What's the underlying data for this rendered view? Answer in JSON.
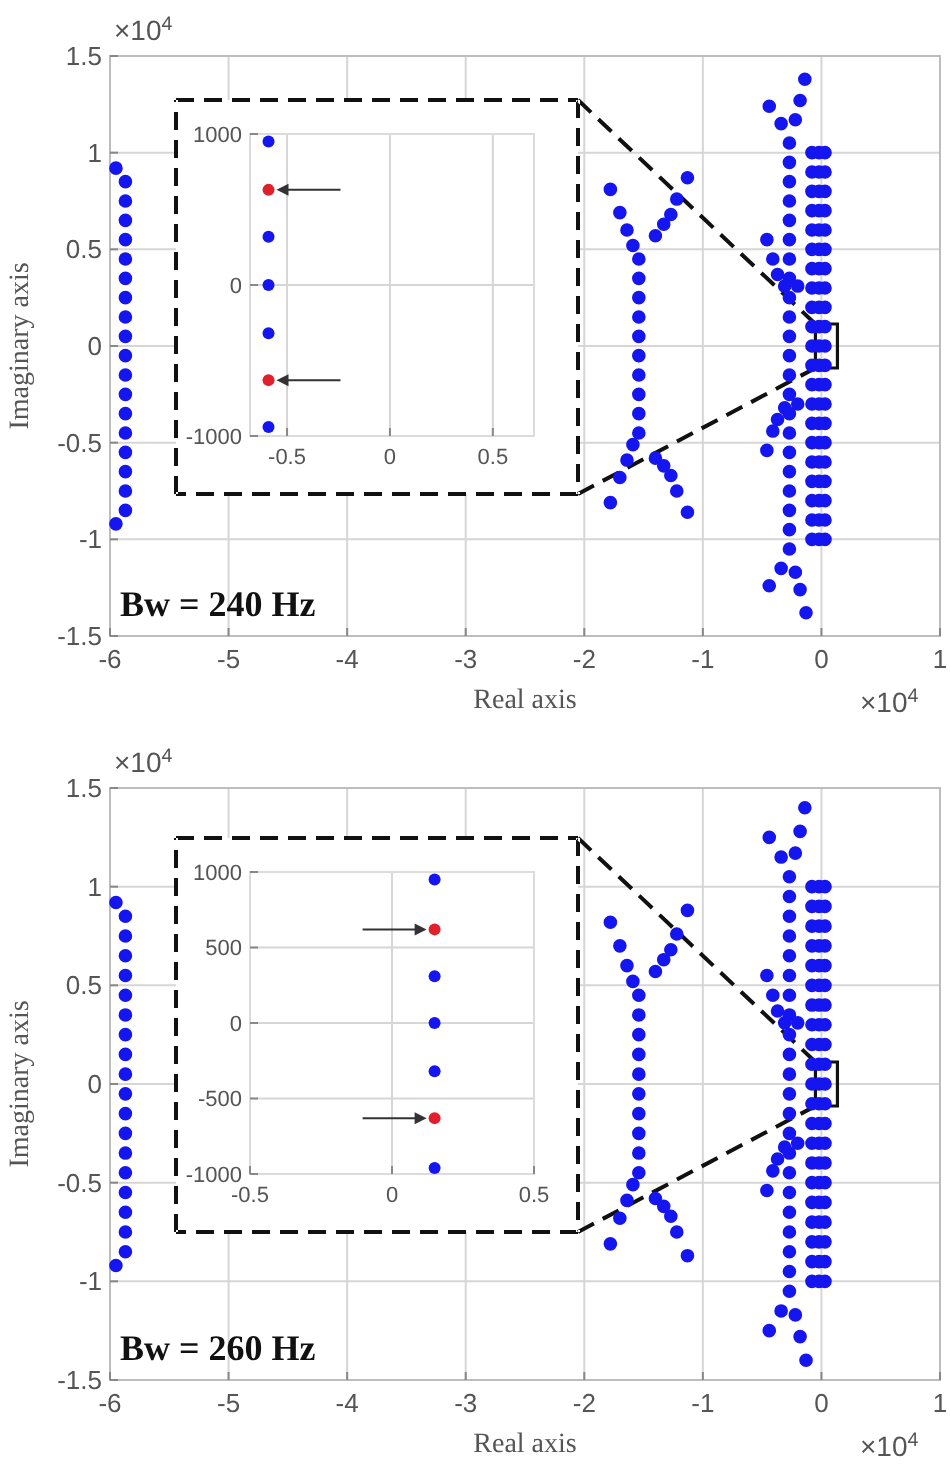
{
  "chart_data": [
    {
      "type": "scatter",
      "xlabel": "Real axis",
      "ylabel": "Imaginary axis",
      "annotations": [
        "×10$^{4}$",
        "×10$^{4}$",
        "Bw = 240 Hz"
      ],
      "xlim": [
        -6,
        1
      ],
      "ylim": [
        -1.5,
        1.5
      ],
      "xticks": [
        -6,
        -5,
        -4,
        -3,
        -2,
        -1,
        0,
        1
      ],
      "yticks": [
        -1.5,
        -1,
        -0.5,
        0,
        0.5,
        1,
        1.5
      ],
      "grid": true,
      "marker": "circle",
      "series": [
        {
          "color": "#1515f0",
          "x": [
            -5.95,
            -5.87,
            -5.87,
            -5.87,
            -5.87,
            -5.87,
            -5.87,
            -5.87,
            -5.87,
            -5.87,
            -5.87,
            -5.87,
            -5.87,
            -5.87,
            -5.87,
            -5.87,
            -5.87,
            -5.87,
            -5.87,
            -5.95
          ],
          "values": [
            -0.92,
            -0.85,
            -0.75,
            -0.65,
            -0.55,
            -0.45,
            -0.35,
            -0.25,
            -0.15,
            -0.05,
            0.05,
            0.15,
            0.25,
            0.35,
            0.45,
            0.55,
            0.65,
            0.75,
            0.85,
            0.92
          ]
        },
        {
          "color": "#1515f0",
          "x": [
            -1.54,
            -1.54,
            -1.54,
            -1.54,
            -1.54,
            -1.54,
            -1.54,
            -1.54,
            -1.54,
            -1.54,
            -1.78,
            -1.7,
            -1.64,
            -1.59,
            -1.4,
            -1.33,
            -1.27,
            -1.22,
            -1.13,
            -1.78,
            -1.7,
            -1.64,
            -1.59,
            -1.4,
            -1.33,
            -1.27,
            -1.22,
            -1.13
          ],
          "values": [
            -0.45,
            -0.35,
            -0.25,
            -0.15,
            -0.05,
            0.05,
            0.15,
            0.25,
            0.35,
            0.45,
            0.81,
            0.69,
            0.6,
            0.52,
            0.57,
            0.63,
            0.68,
            0.76,
            0.87,
            -0.81,
            -0.68,
            -0.59,
            -0.51,
            -0.58,
            -0.62,
            -0.67,
            -0.75,
            -0.86
          ]
        },
        {
          "color": "#1515f0",
          "x": [
            -0.27,
            -0.27,
            -0.27,
            -0.27,
            -0.27,
            -0.27,
            -0.27,
            -0.27,
            -0.27,
            -0.27,
            -0.27,
            -0.27,
            -0.27,
            -0.27,
            -0.27,
            -0.27,
            -0.27,
            -0.27,
            -0.27,
            -0.27,
            -0.27,
            -0.27,
            -0.44,
            -0.34,
            -0.22,
            -0.18,
            -0.14,
            -0.44,
            -0.34,
            -0.22,
            -0.18,
            -0.13,
            -0.46,
            -0.41,
            -0.37,
            -0.31,
            -0.2,
            -0.46,
            -0.41,
            -0.37,
            -0.31,
            -0.2
          ],
          "values": [
            -1.05,
            -0.95,
            -0.85,
            -0.75,
            -0.65,
            -0.55,
            -0.45,
            -0.35,
            -0.25,
            -0.15,
            -0.05,
            0.05,
            0.15,
            0.25,
            0.35,
            0.45,
            0.55,
            0.65,
            0.75,
            0.85,
            0.95,
            1.05,
            1.24,
            1.15,
            1.17,
            1.27,
            1.38,
            -1.24,
            -1.15,
            -1.17,
            -1.26,
            -1.38,
            0.55,
            0.45,
            0.37,
            0.31,
            0.31,
            -0.54,
            -0.44,
            -0.38,
            -0.32,
            -0.3
          ]
        },
        {
          "color": "#1515f0",
          "x": [
            -0.08,
            -0.08,
            -0.08,
            -0.08,
            -0.08,
            -0.08,
            -0.08,
            -0.08,
            -0.08,
            -0.08,
            -0.08,
            -0.08,
            -0.08,
            -0.08,
            -0.08,
            -0.08,
            -0.08,
            -0.08,
            -0.08,
            -0.08,
            -0.08
          ],
          "values": [
            -1,
            -0.9,
            -0.8,
            -0.7,
            -0.6,
            -0.5,
            -0.4,
            -0.3,
            -0.2,
            -0.1,
            0,
            0.1,
            0.2,
            0.3,
            0.4,
            0.5,
            0.6,
            0.7,
            0.8,
            0.9,
            1
          ]
        },
        {
          "color": "#1515f0",
          "x": [
            -0.02,
            -0.02,
            -0.02,
            -0.02,
            -0.02,
            -0.02,
            -0.02,
            -0.02,
            -0.02,
            -0.02,
            -0.02,
            -0.02,
            -0.02,
            -0.02,
            -0.02,
            -0.02,
            -0.02,
            -0.02,
            -0.02,
            -0.02,
            -0.02
          ],
          "values": [
            -1,
            -0.9,
            -0.8,
            -0.7,
            -0.6,
            -0.5,
            -0.4,
            -0.3,
            -0.2,
            -0.1,
            0,
            0.1,
            0.2,
            0.3,
            0.4,
            0.5,
            0.6,
            0.7,
            0.8,
            0.9,
            1
          ]
        },
        {
          "color": "#1515f0",
          "x": [
            0.03,
            0.03,
            0.03,
            0.03,
            0.03,
            0.03,
            0.03,
            0.03,
            0.03,
            0.03,
            0.03,
            0.03,
            0.03,
            0.03,
            0.03,
            0.03,
            0.03,
            0.03,
            0.03,
            0.03,
            0.03
          ],
          "values": [
            -1,
            -0.9,
            -0.8,
            -0.7,
            -0.6,
            -0.5,
            -0.4,
            -0.3,
            -0.2,
            -0.1,
            0,
            0.1,
            0.2,
            0.3,
            0.4,
            0.5,
            0.6,
            0.7,
            0.8,
            0.9,
            1
          ]
        }
      ]
    },
    {
      "type": "scatter",
      "xlim": [
        -0.68,
        0.7
      ],
      "ylim": [
        -1000,
        1000
      ],
      "xticks": [
        -0.5,
        0,
        0.5
      ],
      "yticks": [
        -1000,
        0,
        1000
      ],
      "grid": true,
      "marker": "circle",
      "series": [
        {
          "color": "#1515f0",
          "x": [
            -0.59,
            -0.59,
            -0.59,
            -0.59,
            -0.59
          ],
          "values": [
            950,
            320,
            0,
            -320,
            -940
          ]
        },
        {
          "color": "#e0202a",
          "x": [
            -0.59,
            -0.59
          ],
          "values": [
            630,
            -630
          ]
        }
      ]
    },
    {
      "type": "scatter",
      "xlabel": "Real axis",
      "ylabel": "Imaginary axis",
      "annotations": [
        "×10$^{4}$",
        "×10$^{4}$",
        "Bw = 260 Hz"
      ],
      "xlim": [
        -6,
        1
      ],
      "ylim": [
        -1.5,
        1.5
      ],
      "xticks": [
        -6,
        -5,
        -4,
        -3,
        -2,
        -1,
        0,
        1
      ],
      "yticks": [
        -1.5,
        -1,
        -0.5,
        0,
        0.5,
        1,
        1.5
      ],
      "grid": true,
      "marker": "circle",
      "series": [
        {
          "color": "#1515f0",
          "x": [
            -5.95,
            -5.87,
            -5.87,
            -5.87,
            -5.87,
            -5.87,
            -5.87,
            -5.87,
            -5.87,
            -5.87,
            -5.87,
            -5.87,
            -5.87,
            -5.87,
            -5.87,
            -5.87,
            -5.87,
            -5.87,
            -5.87,
            -5.95
          ],
          "values": [
            -0.92,
            -0.85,
            -0.75,
            -0.65,
            -0.55,
            -0.45,
            -0.35,
            -0.25,
            -0.15,
            -0.05,
            0.05,
            0.15,
            0.25,
            0.35,
            0.45,
            0.55,
            0.65,
            0.75,
            0.85,
            0.92
          ]
        },
        {
          "color": "#1515f0",
          "x": [
            -1.54,
            -1.54,
            -1.54,
            -1.54,
            -1.54,
            -1.54,
            -1.54,
            -1.54,
            -1.54,
            -1.54,
            -1.78,
            -1.7,
            -1.64,
            -1.59,
            -1.4,
            -1.33,
            -1.27,
            -1.22,
            -1.13,
            -1.78,
            -1.7,
            -1.64,
            -1.59,
            -1.4,
            -1.33,
            -1.27,
            -1.22,
            -1.13
          ],
          "values": [
            -0.45,
            -0.35,
            -0.25,
            -0.15,
            -0.05,
            0.05,
            0.15,
            0.25,
            0.35,
            0.45,
            0.82,
            0.7,
            0.6,
            0.52,
            0.57,
            0.63,
            0.68,
            0.76,
            0.88,
            -0.81,
            -0.68,
            -0.59,
            -0.51,
            -0.58,
            -0.62,
            -0.67,
            -0.75,
            -0.87
          ]
        },
        {
          "color": "#1515f0",
          "x": [
            -0.27,
            -0.27,
            -0.27,
            -0.27,
            -0.27,
            -0.27,
            -0.27,
            -0.27,
            -0.27,
            -0.27,
            -0.27,
            -0.27,
            -0.27,
            -0.27,
            -0.27,
            -0.27,
            -0.27,
            -0.27,
            -0.27,
            -0.27,
            -0.27,
            -0.27,
            -0.44,
            -0.34,
            -0.22,
            -0.18,
            -0.14,
            -0.44,
            -0.34,
            -0.22,
            -0.18,
            -0.13,
            -0.46,
            -0.41,
            -0.37,
            -0.31,
            -0.2,
            -0.46,
            -0.41,
            -0.37,
            -0.31,
            -0.2
          ],
          "values": [
            -1.05,
            -0.95,
            -0.85,
            -0.75,
            -0.65,
            -0.55,
            -0.45,
            -0.35,
            -0.25,
            -0.15,
            -0.05,
            0.05,
            0.15,
            0.25,
            0.35,
            0.45,
            0.55,
            0.65,
            0.75,
            0.85,
            0.95,
            1.05,
            1.25,
            1.15,
            1.17,
            1.28,
            1.4,
            -1.25,
            -1.15,
            -1.17,
            -1.28,
            -1.4,
            0.55,
            0.45,
            0.37,
            0.31,
            0.31,
            -0.54,
            -0.44,
            -0.38,
            -0.32,
            -0.3
          ]
        },
        {
          "color": "#1515f0",
          "x": [
            -0.08,
            -0.08,
            -0.08,
            -0.08,
            -0.08,
            -0.08,
            -0.08,
            -0.08,
            -0.08,
            -0.08,
            -0.08,
            -0.08,
            -0.08,
            -0.08,
            -0.08,
            -0.08,
            -0.08,
            -0.08,
            -0.08,
            -0.08,
            -0.08
          ],
          "values": [
            -1,
            -0.9,
            -0.8,
            -0.7,
            -0.6,
            -0.5,
            -0.4,
            -0.3,
            -0.2,
            -0.1,
            0,
            0.1,
            0.2,
            0.3,
            0.4,
            0.5,
            0.6,
            0.7,
            0.8,
            0.9,
            1
          ]
        },
        {
          "color": "#1515f0",
          "x": [
            -0.02,
            -0.02,
            -0.02,
            -0.02,
            -0.02,
            -0.02,
            -0.02,
            -0.02,
            -0.02,
            -0.02,
            -0.02,
            -0.02,
            -0.02,
            -0.02,
            -0.02,
            -0.02,
            -0.02,
            -0.02,
            -0.02,
            -0.02,
            -0.02
          ],
          "values": [
            -1,
            -0.9,
            -0.8,
            -0.7,
            -0.6,
            -0.5,
            -0.4,
            -0.3,
            -0.2,
            -0.1,
            0,
            0.1,
            0.2,
            0.3,
            0.4,
            0.5,
            0.6,
            0.7,
            0.8,
            0.9,
            1
          ]
        },
        {
          "color": "#1515f0",
          "x": [
            0.03,
            0.03,
            0.03,
            0.03,
            0.03,
            0.03,
            0.03,
            0.03,
            0.03,
            0.03,
            0.03,
            0.03,
            0.03,
            0.03,
            0.03,
            0.03,
            0.03,
            0.03,
            0.03,
            0.03,
            0.03
          ],
          "values": [
            -1,
            -0.9,
            -0.8,
            -0.7,
            -0.6,
            -0.5,
            -0.4,
            -0.3,
            -0.2,
            -0.1,
            0,
            0.1,
            0.2,
            0.3,
            0.4,
            0.5,
            0.6,
            0.7,
            0.8,
            0.9,
            1
          ]
        }
      ]
    },
    {
      "type": "scatter",
      "xlim": [
        -0.5,
        0.5
      ],
      "ylim": [
        -1000,
        1000
      ],
      "xticks": [
        -0.5,
        0,
        0.5
      ],
      "yticks": [
        -1000,
        -500,
        0,
        500,
        1000
      ],
      "grid": true,
      "marker": "circle",
      "series": [
        {
          "color": "#1515f0",
          "x": [
            0.15,
            0.15,
            0.15,
            0.15,
            0.15
          ],
          "values": [
            950,
            310,
            0,
            -320,
            -960
          ]
        },
        {
          "color": "#e0202a",
          "x": [
            0.15,
            0.15
          ],
          "values": [
            620,
            -630
          ]
        }
      ]
    }
  ]
}
